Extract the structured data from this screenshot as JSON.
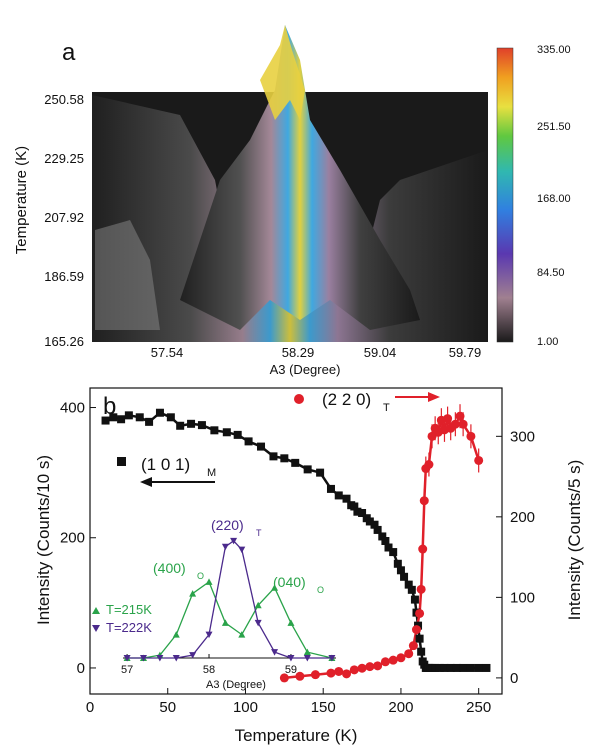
{
  "panel_a": {
    "label": "a",
    "ylabel": "Temperature (K)",
    "xlabel": "A3 (Degree)",
    "y_ticks": [
      "250.58",
      "229.25",
      "207.92",
      "186.59",
      "165.26"
    ],
    "x_ticks": [
      "57.54",
      "58.29",
      "59.04",
      "59.79"
    ],
    "colorbar_ticks": [
      "335.00",
      "251.50",
      "168.00",
      "84.50",
      "1.00"
    ],
    "colorbar_colors": [
      "#e0402a",
      "#f0a020",
      "#e8e040",
      "#40c060",
      "#30a8e0",
      "#6040b0",
      "#a08090",
      "#303030"
    ]
  },
  "panel_b": {
    "label": "b",
    "xlabel": "Temperature (K)",
    "ylabel_left": "Intensity (Counts/10 s)",
    "ylabel_right": "Intensity (Counts/5 s)",
    "series_m_label": "(1 0 1)",
    "series_m_sub": "M",
    "series_t_label": "(2 2 0)",
    "series_t_sub": "T",
    "inset": {
      "xlabel": "A3 (Degree)",
      "x_ticks": [
        "57",
        "58",
        "59"
      ],
      "peak_400": "(400)",
      "peak_400_sub": "O",
      "peak_220": "(220)",
      "peak_220_sub": "T",
      "peak_040": "(040)",
      "peak_040_sub": "O",
      "legend_215": "T=215K",
      "legend_222": "T=222K",
      "color_215": "#2aa34a",
      "color_222": "#4b2a8c"
    }
  },
  "chart_data": [
    {
      "type": "heatmap",
      "xlabel": "A3 (Degree)",
      "ylabel": "Temperature (K)",
      "xlim": [
        56.79,
        59.79
      ],
      "ylim": [
        165.26,
        250.58
      ],
      "x_ticks": [
        57.54,
        58.29,
        59.04,
        59.79
      ],
      "y_ticks": [
        165.26,
        186.59,
        207.92,
        229.25,
        250.58
      ],
      "colorbar_range": [
        1.0,
        335.0
      ],
      "colorbar_ticks": [
        1.0,
        84.5,
        168.0,
        251.5,
        335.0
      ]
    },
    {
      "type": "scatter",
      "xlabel": "Temperature (K)",
      "ylabel": "Intensity (Counts/10 s)",
      "ylabel_right": "Intensity (Counts/5 s)",
      "xlim": [
        0,
        265
      ],
      "ylim_left": [
        -40,
        430
      ],
      "ylim_right": [
        -20,
        360
      ],
      "x_ticks": [
        0,
        50,
        100,
        150,
        200,
        250
      ],
      "y_ticks_left": [
        0,
        200,
        400
      ],
      "y_ticks_right": [
        0,
        100,
        200,
        300
      ],
      "series": [
        {
          "name": "(1 0 1)M",
          "axis": "left",
          "color": "#000000",
          "marker": "square",
          "x": [
            10,
            15,
            20,
            25,
            32,
            38,
            45,
            52,
            58,
            65,
            72,
            80,
            88,
            95,
            102,
            110,
            118,
            125,
            132,
            140,
            148,
            155,
            160,
            165,
            168,
            170,
            172,
            175,
            178,
            180,
            183,
            185,
            188,
            190,
            192,
            195,
            198,
            200,
            202,
            205,
            207,
            209,
            210,
            211,
            212,
            213,
            214,
            215,
            216,
            217,
            218,
            219,
            220,
            222,
            225,
            228,
            232,
            236,
            240,
            245,
            250,
            255
          ],
          "y": [
            380,
            385,
            382,
            388,
            385,
            378,
            392,
            385,
            372,
            375,
            373,
            365,
            362,
            358,
            348,
            340,
            325,
            322,
            315,
            305,
            300,
            275,
            265,
            260,
            250,
            248,
            240,
            238,
            230,
            225,
            220,
            212,
            202,
            195,
            185,
            178,
            160,
            150,
            140,
            128,
            120,
            105,
            85,
            65,
            45,
            25,
            10,
            5,
            0,
            0,
            0,
            0,
            0,
            0,
            0,
            0,
            0,
            0,
            0,
            0,
            0,
            0
          ]
        },
        {
          "name": "(2 2 0)T",
          "axis": "right",
          "color": "#e0202a",
          "marker": "circle",
          "x": [
            125,
            135,
            145,
            155,
            160,
            165,
            170,
            175,
            180,
            185,
            190,
            195,
            200,
            205,
            208,
            210,
            212,
            213,
            214,
            215,
            216,
            218,
            220,
            222,
            224,
            226,
            228,
            230,
            232,
            235,
            238,
            240,
            245,
            250
          ],
          "y": [
            0,
            2,
            4,
            6,
            8,
            5,
            10,
            12,
            14,
            15,
            20,
            22,
            25,
            30,
            40,
            60,
            80,
            110,
            160,
            220,
            260,
            265,
            300,
            310,
            305,
            320,
            308,
            322,
            310,
            315,
            325,
            315,
            300,
            270
          ]
        },
        {
          "name": "T=215K",
          "inset": true,
          "color": "#2aa34a",
          "marker": "triangle-up",
          "x": [
            57.0,
            57.2,
            57.4,
            57.6,
            57.8,
            58.0,
            58.2,
            58.4,
            58.6,
            58.8,
            59.0,
            59.2,
            59.5
          ],
          "y": [
            0,
            0,
            5,
            40,
            110,
            130,
            60,
            40,
            90,
            120,
            60,
            10,
            0
          ]
        },
        {
          "name": "T=222K",
          "inset": true,
          "color": "#4b2a8c",
          "marker": "triangle-down",
          "x": [
            57.0,
            57.2,
            57.4,
            57.6,
            57.8,
            58.0,
            58.2,
            58.3,
            58.4,
            58.6,
            58.8,
            59.0,
            59.2,
            59.5
          ],
          "y": [
            0,
            0,
            0,
            0,
            5,
            40,
            190,
            200,
            185,
            60,
            10,
            0,
            0,
            0
          ]
        }
      ]
    }
  ]
}
